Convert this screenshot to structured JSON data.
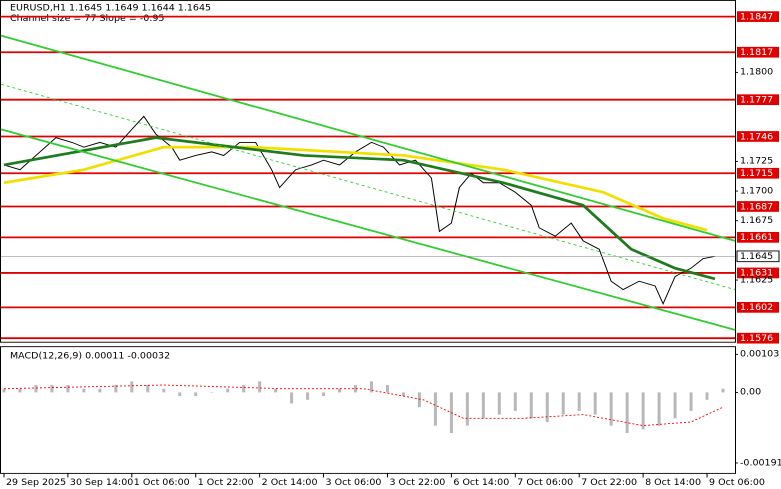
{
  "chart_data": [
    {
      "type": "line",
      "title": "EURUSD,H1  1.1645 1.1649 1.1644 1.1645",
      "subtitle": "Channel size = 77 Slope = -0.95",
      "xlim": [
        -0.75,
        183
      ],
      "xticks": [
        {
          "value": 0,
          "label": "29 Sep 2025"
        },
        {
          "value": 16,
          "label": "30 Sep 14:00"
        },
        {
          "value": 32,
          "label": "1 Oct 06:00"
        },
        {
          "value": 48,
          "label": "1 Oct 22:00"
        },
        {
          "value": 64,
          "label": "2 Oct 14:00"
        },
        {
          "value": 80,
          "label": "3 Oct 06:00"
        },
        {
          "value": 96,
          "label": "3 Oct 22:00"
        },
        {
          "value": 112,
          "label": "6 Oct 14:00"
        },
        {
          "value": 128,
          "label": "7 Oct 06:00"
        },
        {
          "value": 144,
          "label": "7 Oct 22:00"
        },
        {
          "value": 160,
          "label": "8 Oct 14:00"
        },
        {
          "value": 176,
          "label": "9 Oct 06:00"
        }
      ],
      "ylim": [
        1.1573,
        1.1861
      ],
      "yticks": [
        {
          "value": 1.18,
          "label": "1.1800"
        },
        {
          "value": 1.1725,
          "label": "1.1725"
        },
        {
          "value": 1.17,
          "label": "1.1700"
        },
        {
          "value": 1.1675,
          "label": "1.1675"
        },
        {
          "value": 1.1625,
          "label": "1.1625"
        }
      ],
      "levels": [
        1.1847,
        1.1817,
        1.1777,
        1.1746,
        1.1715,
        1.1687,
        1.1661,
        1.1631,
        1.1602,
        1.1576
      ],
      "level_color": "#e00000",
      "current_price": 1.1645,
      "series": [
        {
          "color": "#000000",
          "x": [
            0,
            4,
            9,
            13,
            17,
            20,
            24,
            28,
            32,
            35,
            38,
            42,
            44,
            48,
            52,
            55,
            59,
            63,
            67,
            69,
            73,
            77,
            80,
            84,
            88,
            92,
            95,
            99,
            103,
            107,
            109,
            112,
            114,
            117,
            120,
            124,
            128,
            132,
            134,
            138,
            142,
            145,
            149,
            152,
            155,
            159,
            163,
            165,
            168,
            172,
            175,
            178
          ],
          "values": [
            1.1722,
            1.1718,
            1.1733,
            1.1745,
            1.1741,
            1.1737,
            1.1741,
            1.1737,
            1.1752,
            1.1763,
            1.1748,
            1.1737,
            1.1726,
            1.173,
            1.1733,
            1.173,
            1.1741,
            1.1741,
            1.1718,
            1.1703,
            1.1718,
            1.1722,
            1.1726,
            1.1722,
            1.1733,
            1.1741,
            1.1737,
            1.1722,
            1.1726,
            1.1711,
            1.1666,
            1.1673,
            1.1703,
            1.1715,
            1.1707,
            1.1707,
            1.1699,
            1.1688,
            1.1669,
            1.1662,
            1.1673,
            1.1658,
            1.1651,
            1.1624,
            1.1617,
            1.1624,
            1.162,
            1.1605,
            1.1628,
            1.1635,
            1.1643,
            1.1645
          ]
        },
        {
          "color": "#f0e000",
          "x": [
            0,
            20,
            40,
            62,
            100,
            125,
            150,
            165,
            176
          ],
          "values": [
            1.1707,
            1.1718,
            1.1737,
            1.1737,
            1.173,
            1.1718,
            1.1699,
            1.1677,
            1.1667
          ]
        },
        {
          "color": "#1e7b1e",
          "x": [
            0,
            38,
            75,
            100,
            125,
            145,
            157,
            168,
            178
          ],
          "values": [
            1.1722,
            1.1745,
            1.173,
            1.1726,
            1.1707,
            1.1688,
            1.1651,
            1.1635,
            1.1626
          ]
        },
        {
          "color": "#32cd32",
          "x": [
            -0.75,
            183
          ],
          "values": [
            1.1831,
            1.1658
          ]
        },
        {
          "color": "#32cd32",
          "x": [
            -0.75,
            183
          ],
          "values": [
            1.1752,
            1.1583
          ]
        },
        {
          "color": "#32cd32",
          "dash": true,
          "x": [
            -0.75,
            183
          ],
          "values": [
            1.179,
            1.1617
          ]
        }
      ]
    },
    {
      "type": "macd",
      "title": "MACD(12,26,9) 0.00011 -0.00032",
      "xlim": [
        -0.75,
        183
      ],
      "ylim": [
        -0.00218,
        0.00125
      ],
      "yticks": [
        0.00103,
        {
          "value": 0,
          "label": "0.00"
        },
        -0.00191
      ],
      "histogram": {
        "color": "#b8b8b8",
        "x": [
          0,
          4,
          8,
          12,
          16,
          20,
          24,
          28,
          32,
          36,
          40,
          44,
          48,
          52,
          56,
          60,
          64,
          68,
          72,
          76,
          80,
          84,
          88,
          92,
          96,
          100,
          104,
          108,
          112,
          116,
          120,
          124,
          128,
          132,
          136,
          140,
          144,
          148,
          152,
          156,
          160,
          164,
          168,
          172,
          176,
          180
        ],
        "values": [
          0.0001,
          0.0001,
          0.0002,
          0.0002,
          0.0002,
          0.0001,
          0.0001,
          0.0002,
          0.0003,
          0.0002,
          0.0001,
          -0.0001,
          -0.0001,
          0,
          0.0001,
          0.0002,
          0.0003,
          0.0001,
          -0.0003,
          -0.0002,
          -0.0001,
          0.0001,
          0.0002,
          0.0003,
          0.0002,
          -0.0001,
          -0.0004,
          -0.0009,
          -0.0011,
          -0.0009,
          -0.0007,
          -0.0006,
          -0.0005,
          -0.0007,
          -0.0008,
          -0.0006,
          -0.0005,
          -0.0006,
          -0.0009,
          -0.0011,
          -0.001,
          -0.0009,
          -0.0007,
          -0.0005,
          -0.0002,
          0.0001
        ]
      },
      "signal": {
        "color": "#ff0000",
        "x": [
          0,
          40,
          70,
          90,
          105,
          115,
          130,
          145,
          160,
          172,
          180
        ],
        "values": [
          0.0001,
          0.0002,
          0.0001,
          0.0001,
          -0.0002,
          -0.0007,
          -0.0007,
          -0.0006,
          -0.0009,
          -0.0008,
          -0.0004
        ]
      }
    }
  ]
}
